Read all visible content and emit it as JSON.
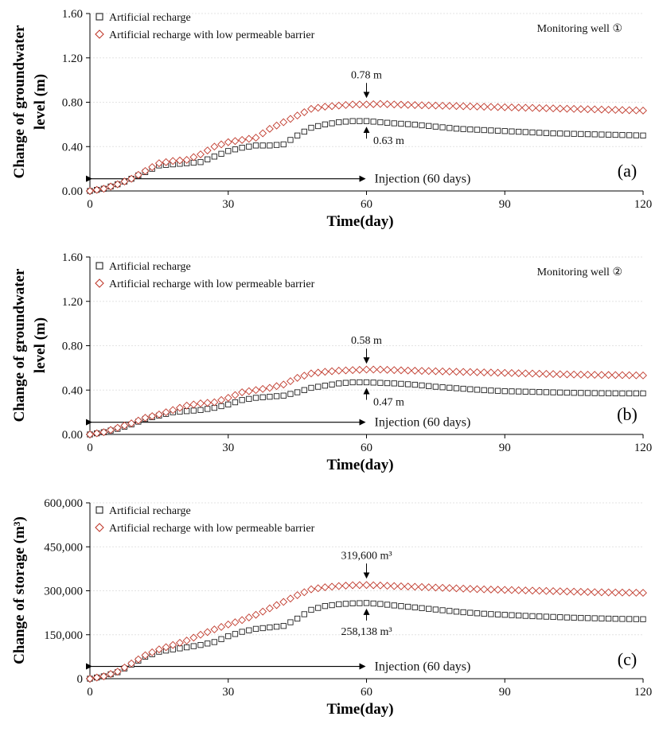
{
  "chart_data": [
    {
      "type": "scatter",
      "panel_label": "(a)",
      "title": "Monitoring well ①",
      "xlabel": "Time(day)",
      "ylabel_lines": [
        "Change of groundwater",
        "level (m)"
      ],
      "xlim": [
        0,
        120
      ],
      "ylim": [
        0,
        1.6
      ],
      "xticks": [
        0,
        30,
        60,
        90,
        120
      ],
      "xtick_labels": [
        "0",
        "30",
        "60",
        "90",
        "120"
      ],
      "yticks": [
        0,
        0.4,
        0.8,
        1.2,
        1.6
      ],
      "ytick_labels": [
        "0.00",
        "0.40",
        "0.80",
        "1.20",
        "1.60"
      ],
      "legend": [
        "Artificial recharge",
        "Artificial recharge with low permeable barrier"
      ],
      "injection": {
        "label": "Injection (60 days)",
        "x_start": 0,
        "x_end": 60,
        "y": 0.11
      },
      "annotations": [
        {
          "text": "0.78 m",
          "x": 60,
          "y": 0.78,
          "position": "above"
        },
        {
          "text": "0.63 m",
          "x": 60,
          "y": 0.63,
          "position": "below"
        }
      ],
      "series": [
        {
          "name": "Artificial recharge",
          "marker": "square",
          "color": "#222222",
          "points": [
            [
              0,
              0
            ],
            [
              3,
              0.02
            ],
            [
              6,
              0.06
            ],
            [
              9,
              0.11
            ],
            [
              12,
              0.17
            ],
            [
              15,
              0.23
            ],
            [
              18,
              0.24
            ],
            [
              21,
              0.25
            ],
            [
              24,
              0.26
            ],
            [
              27,
              0.31
            ],
            [
              30,
              0.36
            ],
            [
              33,
              0.39
            ],
            [
              36,
              0.41
            ],
            [
              39,
              0.41
            ],
            [
              42,
              0.42
            ],
            [
              45,
              0.5
            ],
            [
              48,
              0.57
            ],
            [
              51,
              0.6
            ],
            [
              54,
              0.62
            ],
            [
              57,
              0.63
            ],
            [
              60,
              0.63
            ],
            [
              63,
              0.62
            ],
            [
              66,
              0.61
            ],
            [
              70,
              0.6
            ],
            [
              75,
              0.58
            ],
            [
              80,
              0.56
            ],
            [
              85,
              0.55
            ],
            [
              90,
              0.54
            ],
            [
              95,
              0.53
            ],
            [
              100,
              0.52
            ],
            [
              105,
              0.515
            ],
            [
              110,
              0.51
            ],
            [
              115,
              0.505
            ],
            [
              120,
              0.5
            ]
          ]
        },
        {
          "name": "Artificial recharge with low permeable barrier",
          "marker": "diamond",
          "color": "#c0392b",
          "points": [
            [
              0,
              0
            ],
            [
              3,
              0.02
            ],
            [
              6,
              0.06
            ],
            [
              9,
              0.11
            ],
            [
              12,
              0.18
            ],
            [
              15,
              0.25
            ],
            [
              18,
              0.27
            ],
            [
              21,
              0.28
            ],
            [
              24,
              0.33
            ],
            [
              27,
              0.4
            ],
            [
              30,
              0.44
            ],
            [
              33,
              0.46
            ],
            [
              36,
              0.48
            ],
            [
              39,
              0.56
            ],
            [
              42,
              0.62
            ],
            [
              45,
              0.68
            ],
            [
              48,
              0.74
            ],
            [
              51,
              0.76
            ],
            [
              54,
              0.77
            ],
            [
              57,
              0.78
            ],
            [
              60,
              0.78
            ],
            [
              63,
              0.785
            ],
            [
              66,
              0.78
            ],
            [
              70,
              0.775
            ],
            [
              75,
              0.77
            ],
            [
              80,
              0.765
            ],
            [
              85,
              0.76
            ],
            [
              90,
              0.755
            ],
            [
              95,
              0.75
            ],
            [
              100,
              0.745
            ],
            [
              105,
              0.74
            ],
            [
              110,
              0.735
            ],
            [
              115,
              0.73
            ],
            [
              120,
              0.725
            ]
          ]
        }
      ]
    },
    {
      "type": "scatter",
      "panel_label": "(b)",
      "title": "Monitoring well ②",
      "xlabel": "Time(day)",
      "ylabel_lines": [
        "Change of groundwater",
        "level (m)"
      ],
      "xlim": [
        0,
        120
      ],
      "ylim": [
        0,
        1.6
      ],
      "xticks": [
        0,
        30,
        60,
        90,
        120
      ],
      "xtick_labels": [
        "0",
        "30",
        "60",
        "90",
        "120"
      ],
      "yticks": [
        0,
        0.4,
        0.8,
        1.2,
        1.6
      ],
      "ytick_labels": [
        "0.00",
        "0.40",
        "0.80",
        "1.20",
        "1.60"
      ],
      "legend": [
        "Artificial recharge",
        "Artificial recharge with low permeable barrier"
      ],
      "injection": {
        "label": "Injection (60 days)",
        "x_start": 0,
        "x_end": 60,
        "y": 0.11
      },
      "annotations": [
        {
          "text": "0.58 m",
          "x": 60,
          "y": 0.58,
          "position": "above"
        },
        {
          "text": "0.47 m",
          "x": 60,
          "y": 0.47,
          "position": "below"
        }
      ],
      "series": [
        {
          "name": "Artificial recharge",
          "marker": "square",
          "color": "#222222",
          "points": [
            [
              0,
              0
            ],
            [
              3,
              0.02
            ],
            [
              6,
              0.05
            ],
            [
              9,
              0.09
            ],
            [
              12,
              0.14
            ],
            [
              15,
              0.17
            ],
            [
              18,
              0.2
            ],
            [
              21,
              0.21
            ],
            [
              24,
              0.22
            ],
            [
              27,
              0.24
            ],
            [
              30,
              0.27
            ],
            [
              33,
              0.31
            ],
            [
              36,
              0.33
            ],
            [
              39,
              0.34
            ],
            [
              42,
              0.35
            ],
            [
              45,
              0.38
            ],
            [
              48,
              0.42
            ],
            [
              51,
              0.44
            ],
            [
              54,
              0.46
            ],
            [
              57,
              0.47
            ],
            [
              60,
              0.47
            ],
            [
              63,
              0.465
            ],
            [
              66,
              0.46
            ],
            [
              70,
              0.45
            ],
            [
              75,
              0.43
            ],
            [
              80,
              0.415
            ],
            [
              85,
              0.4
            ],
            [
              90,
              0.39
            ],
            [
              95,
              0.385
            ],
            [
              100,
              0.38
            ],
            [
              105,
              0.375
            ],
            [
              110,
              0.372
            ],
            [
              115,
              0.37
            ],
            [
              120,
              0.37
            ]
          ]
        },
        {
          "name": "Artificial recharge with low permeable barrier",
          "marker": "diamond",
          "color": "#c0392b",
          "points": [
            [
              0,
              0
            ],
            [
              3,
              0.02
            ],
            [
              6,
              0.06
            ],
            [
              9,
              0.1
            ],
            [
              12,
              0.15
            ],
            [
              15,
              0.18
            ],
            [
              18,
              0.22
            ],
            [
              21,
              0.26
            ],
            [
              24,
              0.28
            ],
            [
              27,
              0.29
            ],
            [
              30,
              0.33
            ],
            [
              33,
              0.38
            ],
            [
              36,
              0.4
            ],
            [
              39,
              0.42
            ],
            [
              42,
              0.45
            ],
            [
              45,
              0.51
            ],
            [
              48,
              0.55
            ],
            [
              51,
              0.565
            ],
            [
              54,
              0.575
            ],
            [
              57,
              0.58
            ],
            [
              60,
              0.585
            ],
            [
              63,
              0.585
            ],
            [
              66,
              0.58
            ],
            [
              70,
              0.575
            ],
            [
              75,
              0.57
            ],
            [
              80,
              0.565
            ],
            [
              85,
              0.56
            ],
            [
              90,
              0.555
            ],
            [
              95,
              0.55
            ],
            [
              100,
              0.545
            ],
            [
              105,
              0.54
            ],
            [
              110,
              0.537
            ],
            [
              115,
              0.535
            ],
            [
              120,
              0.532
            ]
          ]
        }
      ]
    },
    {
      "type": "scatter",
      "panel_label": "(c)",
      "title": "",
      "xlabel": "Time(day)",
      "ylabel_lines": [
        "Change of  storage (m³)"
      ],
      "xlim": [
        0,
        120
      ],
      "ylim": [
        0,
        600000
      ],
      "xticks": [
        0,
        30,
        60,
        90,
        120
      ],
      "xtick_labels": [
        "0",
        "30",
        "60",
        "90",
        "120"
      ],
      "yticks": [
        0,
        150000,
        300000,
        450000,
        600000
      ],
      "ytick_labels": [
        "0",
        "150,000",
        "300,000",
        "450,000",
        "600,000"
      ],
      "legend": [
        "Artificial recharge",
        "Artificial recharge with low permeable barrier"
      ],
      "injection": {
        "label": "Injection (60 days)",
        "x_start": 0,
        "x_end": 60,
        "y": 42000
      },
      "annotations": [
        {
          "text": "319,600 m³",
          "x": 60,
          "y": 319600,
          "position": "above"
        },
        {
          "text": "258,138 m³",
          "x": 60,
          "y": 258138,
          "position": "below"
        }
      ],
      "series": [
        {
          "name": "Artificial recharge",
          "marker": "square",
          "color": "#222222",
          "points": [
            [
              0,
              0
            ],
            [
              3,
              8000
            ],
            [
              6,
              22000
            ],
            [
              9,
              48000
            ],
            [
              12,
              75000
            ],
            [
              15,
              92000
            ],
            [
              18,
              100000
            ],
            [
              21,
              107000
            ],
            [
              24,
              115000
            ],
            [
              27,
              125000
            ],
            [
              30,
              145000
            ],
            [
              33,
              160000
            ],
            [
              36,
              170000
            ],
            [
              39,
              175000
            ],
            [
              42,
              180000
            ],
            [
              45,
              205000
            ],
            [
              48,
              235000
            ],
            [
              51,
              248000
            ],
            [
              54,
              254000
            ],
            [
              57,
              257000
            ],
            [
              60,
              258138
            ],
            [
              63,
              255000
            ],
            [
              66,
              250000
            ],
            [
              70,
              244000
            ],
            [
              75,
              236000
            ],
            [
              80,
              228000
            ],
            [
              85,
              222000
            ],
            [
              90,
              218000
            ],
            [
              95,
              214000
            ],
            [
              100,
              211000
            ],
            [
              105,
              208000
            ],
            [
              110,
              206000
            ],
            [
              115,
              204000
            ],
            [
              120,
              203000
            ]
          ]
        },
        {
          "name": "Artificial recharge with low permeable barrier",
          "marker": "diamond",
          "color": "#c0392b",
          "points": [
            [
              0,
              0
            ],
            [
              3,
              8000
            ],
            [
              6,
              24000
            ],
            [
              9,
              52000
            ],
            [
              12,
              80000
            ],
            [
              15,
              100000
            ],
            [
              18,
              115000
            ],
            [
              21,
              130000
            ],
            [
              24,
              150000
            ],
            [
              27,
              168000
            ],
            [
              30,
              185000
            ],
            [
              33,
              200000
            ],
            [
              36,
              218000
            ],
            [
              39,
              240000
            ],
            [
              42,
              262000
            ],
            [
              45,
              285000
            ],
            [
              48,
              305000
            ],
            [
              51,
              312000
            ],
            [
              54,
              316000
            ],
            [
              57,
              319000
            ],
            [
              60,
              319600
            ],
            [
              63,
              318000
            ],
            [
              66,
              316000
            ],
            [
              70,
              314000
            ],
            [
              75,
              311000
            ],
            [
              80,
              308000
            ],
            [
              85,
              305000
            ],
            [
              90,
              303000
            ],
            [
              95,
              301000
            ],
            [
              100,
              299000
            ],
            [
              105,
              297000
            ],
            [
              110,
              295000
            ],
            [
              115,
              294000
            ],
            [
              120,
              293000
            ]
          ]
        }
      ]
    }
  ]
}
